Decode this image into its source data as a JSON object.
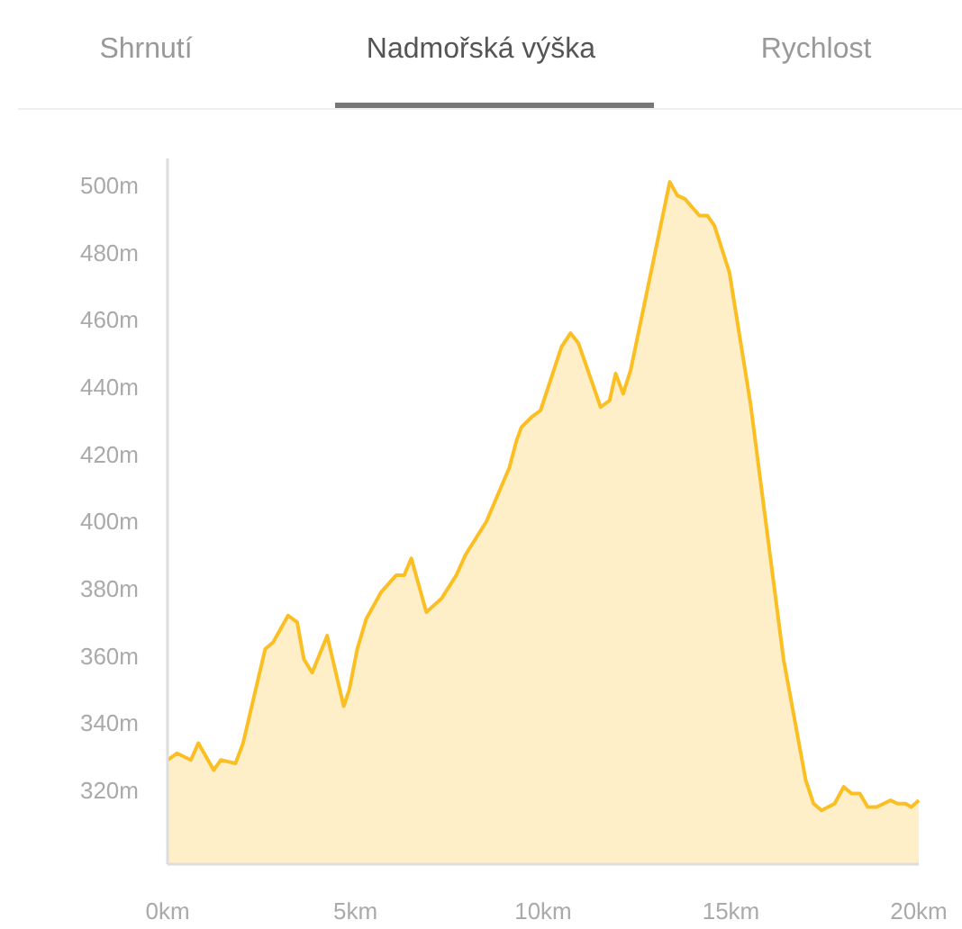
{
  "chart_data": {
    "type": "area",
    "annotations": [
      "Shrnutí",
      "Nadmořská výška",
      "Rychlost"
    ],
    "x": [
      0,
      0.25,
      0.62,
      0.82,
      1.23,
      1.42,
      1.81,
      2.01,
      2.6,
      2.81,
      3.21,
      3.45,
      3.63,
      3.85,
      4.25,
      4.69,
      4.84,
      5.05,
      5.29,
      5.69,
      6.09,
      6.3,
      6.49,
      6.89,
      7.29,
      7.69,
      7.93,
      8.49,
      9.1,
      9.29,
      9.42,
      9.69,
      9.93,
      10.49,
      10.73,
      10.94,
      11.53,
      11.77,
      11.93,
      12.13,
      12.33,
      13.37,
      13.57,
      13.77,
      14.16,
      14.37,
      14.56,
      14.96,
      15.52,
      16.4,
      16.99,
      17.2,
      17.41,
      17.76,
      18,
      18.21,
      18.43,
      18.64,
      18.88,
      19.25,
      19.44,
      19.65,
      19.8,
      20
    ],
    "series": [
      {
        "color": "#fbbf24",
        "values": [
          329,
          331,
          329,
          334,
          326,
          329,
          328,
          334,
          362,
          364,
          372,
          370,
          359,
          355,
          366,
          345,
          350,
          362,
          371,
          379,
          384,
          384,
          389,
          373,
          377,
          384,
          390,
          400,
          416,
          424,
          428,
          431,
          433,
          452,
          456,
          453,
          434,
          436,
          444,
          438,
          445,
          501,
          497,
          496,
          491,
          491,
          488,
          474,
          435,
          359,
          323,
          316,
          314,
          316,
          321,
          319,
          319,
          315,
          315,
          317,
          316,
          316,
          315,
          317
        ]
      }
    ],
    "xlim": [
      0,
      20
    ],
    "ylim": [
      298,
      508
    ],
    "xticks": [
      {
        "value": 0,
        "label": "0km"
      },
      {
        "value": 5,
        "label": "5km"
      },
      {
        "value": 10,
        "label": "10km"
      },
      {
        "value": 15,
        "label": "15km"
      },
      {
        "value": 20,
        "label": "20km"
      }
    ],
    "yticks": [
      {
        "value": 320,
        "label": "320m"
      },
      {
        "value": 340,
        "label": "340m"
      },
      {
        "value": 360,
        "label": "360m"
      },
      {
        "value": 380,
        "label": "380m"
      },
      {
        "value": 400,
        "label": "400m"
      },
      {
        "value": 420,
        "label": "420m"
      },
      {
        "value": 440,
        "label": "440m"
      },
      {
        "value": 460,
        "label": "460m"
      },
      {
        "value": 480,
        "label": "480m"
      },
      {
        "value": 500,
        "label": "500m"
      }
    ],
    "grid": false
  }
}
